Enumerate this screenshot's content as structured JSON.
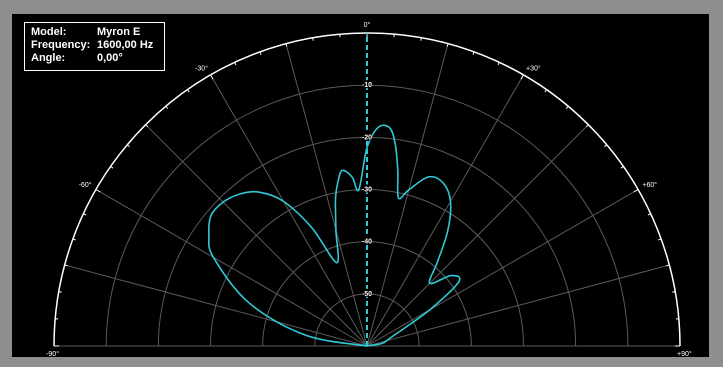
{
  "info": {
    "model_label": "Model:",
    "model_value": "Myron E",
    "frequency_label": "Frequency:",
    "frequency_value": "1600,00 Hz",
    "angle_label": "Angle:",
    "angle_value": "0,00°"
  },
  "colors": {
    "background": "#000000",
    "frame": "#8e8e8e",
    "grid": "#5a5a5a",
    "outer_arc": "#ffffff",
    "pattern": "#2ec9d6",
    "angle_marker": "#2ec9d6"
  },
  "chart_data": {
    "type": "polar",
    "title": "",
    "angular_range_deg": [
      -90,
      90
    ],
    "angle_ticks": [
      "-90°",
      "-60°",
      "-30°",
      "0°",
      "+30°",
      "+60°",
      "+90°"
    ],
    "radial_range_db": [
      -60,
      0
    ],
    "radial_ticks": [
      "-10",
      "-20",
      "-30",
      "-40",
      "-50"
    ],
    "marker_angle_deg": 0,
    "series": [
      {
        "angle_deg": [
          -90,
          -80,
          -70,
          -60,
          -55,
          -50,
          -45,
          -40,
          -35,
          -30,
          -25,
          -20,
          -15,
          -12,
          -10,
          -8,
          -5,
          -3,
          0,
          3,
          6,
          8,
          10,
          12,
          15,
          20,
          25,
          30,
          35,
          40,
          45,
          50,
          55,
          60,
          70,
          80,
          85,
          90
        ],
        "level_db": [
          -60,
          -48,
          -36,
          -26,
          -23,
          -21,
          -21,
          -22,
          -24,
          -28,
          -35,
          -43,
          -37,
          -31,
          -28,
          -26,
          -27.5,
          -30,
          -22,
          -18,
          -18,
          -21,
          -26,
          -31,
          -29,
          -25.5,
          -25.5,
          -28,
          -33,
          -39,
          -43,
          -39,
          -38.5,
          -46,
          -55,
          -57,
          -60,
          -60
        ]
      }
    ]
  }
}
